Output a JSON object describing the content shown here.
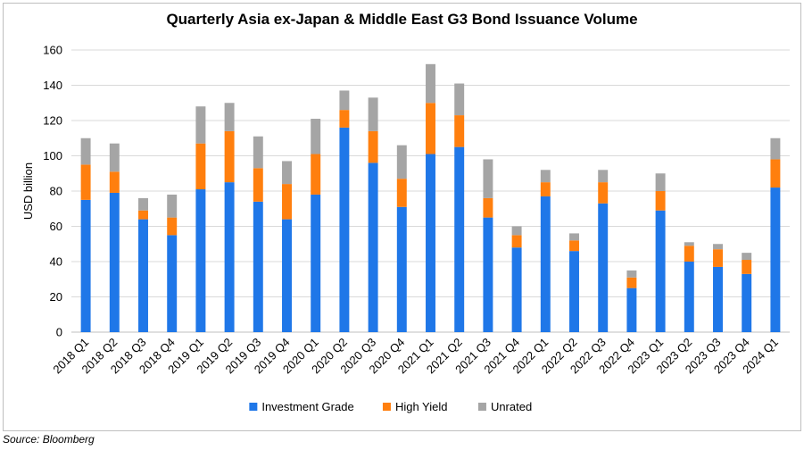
{
  "chart_data": {
    "type": "bar",
    "stacked": true,
    "title": "Quarterly Asia ex-Japan & Middle East G3 Bond Issuance Volume",
    "ylabel": "USD billion",
    "xlabel": "",
    "ylim": [
      0,
      160
    ],
    "yticks": [
      0,
      20,
      40,
      60,
      80,
      100,
      120,
      140,
      160
    ],
    "grid": true,
    "legend_position": "bottom",
    "categories": [
      "2018 Q1",
      "2018 Q2",
      "2018 Q3",
      "2018 Q4",
      "2019 Q1",
      "2019 Q2",
      "2019 Q3",
      "2019 Q4",
      "2020 Q1",
      "2020 Q2",
      "2020 Q3",
      "2020 Q4",
      "2021 Q1",
      "2021 Q2",
      "2021 Q3",
      "2021 Q4",
      "2022 Q1",
      "2022 Q2",
      "2022 Q3",
      "2022 Q4",
      "2023 Q1",
      "2023 Q2",
      "2023 Q3",
      "2023 Q4",
      "2024 Q1"
    ],
    "series": [
      {
        "name": "Investment Grade",
        "color": "#1f77e8",
        "values": [
          75,
          79,
          64,
          55,
          81,
          85,
          74,
          64,
          78,
          116,
          96,
          71,
          101,
          105,
          65,
          48,
          77,
          46,
          73,
          25,
          69,
          40,
          37,
          33,
          82
        ]
      },
      {
        "name": "High Yield",
        "color": "#ff7f0e",
        "values": [
          20,
          12,
          5,
          10,
          26,
          29,
          19,
          20,
          23,
          10,
          18,
          16,
          29,
          18,
          11,
          7,
          8,
          6,
          12,
          6,
          11,
          9,
          10,
          8,
          16
        ]
      },
      {
        "name": "Unrated",
        "color": "#a5a5a5",
        "values": [
          15,
          16,
          7,
          13,
          21,
          16,
          18,
          13,
          20,
          11,
          19,
          19,
          22,
          18,
          22,
          5,
          7,
          4,
          7,
          4,
          10,
          2,
          3,
          4,
          12
        ]
      }
    ]
  },
  "source": "Source: Bloomberg"
}
